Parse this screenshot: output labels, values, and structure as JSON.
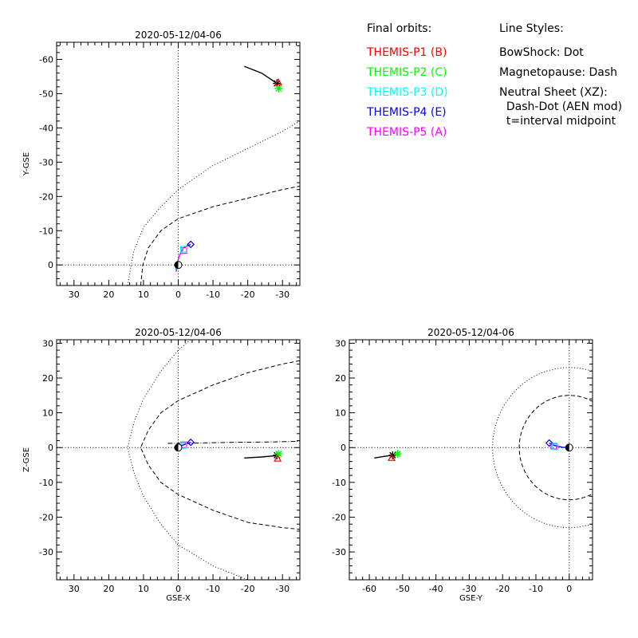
{
  "legend": {
    "orbits_title": "Final orbits:",
    "probes": [
      {
        "label": "THEMIS-P1 (B)",
        "color": "#ff0000"
      },
      {
        "label": "THEMIS-P2 (C)",
        "color": "#00ff00"
      },
      {
        "label": "THEMIS-P3 (D)",
        "color": "#00ffff"
      },
      {
        "label": "THEMIS-P4 (E)",
        "color": "#0000ff"
      },
      {
        "label": "THEMIS-P5 (A)",
        "color": "#ff00ff"
      }
    ],
    "styles_title": "Line Styles:",
    "styles": [
      "BowShock: Dot",
      "Magnetopause: Dash",
      "Neutral Sheet (XZ):",
      "  Dash-Dot (AEN mod)",
      "  t=interval midpoint"
    ]
  },
  "chart_data": [
    {
      "type": "line",
      "title": "2020-05-12/04-06",
      "xlabel": "",
      "ylabel": "Y-GSE",
      "xlim": [
        35,
        -35
      ],
      "ylim": [
        6,
        -65
      ],
      "xticks": [
        30,
        20,
        10,
        0,
        -10,
        -20,
        -30
      ],
      "yticks": [
        0,
        -10,
        -20,
        -30,
        -40,
        -50,
        -60
      ],
      "series": [
        {
          "style": "bowshock",
          "x": [
            14.6,
            12.8,
            10.0,
            5.0,
            0,
            -10,
            -20,
            -30,
            -35
          ],
          "y": [
            6,
            -4,
            -11,
            -17,
            -22,
            -29,
            -34,
            -39,
            -42
          ]
        },
        {
          "style": "magnetopause",
          "x": [
            10.8,
            10.2,
            8.6,
            5.0,
            0,
            -10,
            -20,
            -30,
            -35
          ],
          "y": [
            6,
            0,
            -5,
            -10,
            -13.5,
            -17,
            -19.5,
            -22,
            -23
          ]
        },
        {
          "style": "xaxis",
          "x": [
            35,
            -35
          ],
          "y": [
            0,
            0
          ]
        },
        {
          "style": "yaxis",
          "x": [
            0,
            0
          ],
          "y": [
            6,
            -65
          ]
        },
        {
          "color": "#000000",
          "x": [
            -19,
            -24,
            -28.4
          ],
          "y": [
            -58,
            -56,
            -53
          ]
        },
        {
          "color": "#00ffff",
          "x": [
            0.8,
            0.2,
            -0.5,
            -1.2,
            -1.6
          ],
          "y": [
            1.5,
            -1,
            -3,
            -4.5,
            -5
          ]
        },
        {
          "color": "#ff00ff",
          "x": [
            0.6,
            0.2,
            -0.2,
            -1.0,
            -1.4
          ],
          "y": [
            2.0,
            -0.5,
            -2.5,
            -4.0,
            -4.6
          ]
        },
        {
          "color": "#0000ff",
          "x": [
            -1.6,
            -2.6,
            -3.6
          ],
          "y": [
            -5,
            -5.6,
            -6
          ]
        }
      ],
      "markers": [
        {
          "shape": "star",
          "color": "#000000",
          "x": -28.4,
          "y": -53
        },
        {
          "shape": "triangle",
          "color": "#ff0000",
          "x": -28.8,
          "y": -53.3
        },
        {
          "shape": "star",
          "color": "#00ff00",
          "x": -28.9,
          "y": -51.5
        },
        {
          "shape": "diamond",
          "color": "#0000ff",
          "x": -3.6,
          "y": -6
        },
        {
          "shape": "square",
          "color": "#ff00ff",
          "x": -1.6,
          "y": -4.2
        },
        {
          "shape": "square",
          "color": "#00ffff",
          "x": -1.5,
          "y": -4.6
        },
        {
          "shape": "earth",
          "color": "#000000",
          "x": 0,
          "y": 0
        }
      ]
    },
    {
      "type": "line",
      "title": "2020-05-12/04-06",
      "xlabel": "GSE-X",
      "ylabel": "Z-GSE",
      "xlim": [
        35,
        -35
      ],
      "ylim": [
        -38,
        31
      ],
      "xticks": [
        30,
        20,
        10,
        0,
        -10,
        -20,
        -30
      ],
      "yticks": [
        30,
        20,
        10,
        0,
        -10,
        -20,
        -30
      ],
      "series": [
        {
          "style": "bowshock",
          "x": [
            -3.5,
            0,
            5,
            10,
            12.5,
            14.6,
            12.5,
            10,
            5,
            0,
            -10,
            -20
          ],
          "y": [
            31,
            28,
            22,
            14,
            8,
            0,
            -8,
            -14,
            -22,
            -28,
            -34,
            -38
          ]
        },
        {
          "style": "magnetopause",
          "x": [
            -35,
            -30,
            -20,
            -10,
            0,
            5,
            8.6,
            10.8,
            8.6,
            5,
            0,
            -10,
            -20,
            -30,
            -35
          ],
          "y": [
            25,
            24,
            21.5,
            18,
            13.5,
            10,
            5,
            0,
            -5,
            -10,
            -13.5,
            -18,
            -21.5,
            -23,
            -23.5
          ]
        },
        {
          "style": "neutral-sheet",
          "x": [
            3,
            -5,
            -15,
            -25,
            -35
          ],
          "y": [
            1.2,
            1.3,
            1.5,
            1.6,
            1.8
          ]
        },
        {
          "style": "xaxis",
          "x": [
            35,
            -35
          ],
          "y": [
            0,
            0
          ]
        },
        {
          "style": "yaxis",
          "x": [
            0,
            0
          ],
          "y": [
            -38,
            31
          ]
        },
        {
          "color": "#000000",
          "x": [
            -19,
            -24,
            -28.4
          ],
          "y": [
            -3,
            -2.7,
            -2.3
          ]
        },
        {
          "color": "#0000ff",
          "x": [
            -0.5,
            -1.6,
            -3.6
          ],
          "y": [
            0.4,
            0.8,
            1.5
          ]
        }
      ],
      "markers": [
        {
          "shape": "star",
          "color": "#000000",
          "x": -28.4,
          "y": -2.2
        },
        {
          "shape": "star",
          "color": "#00ff00",
          "x": -28.9,
          "y": -1.8
        },
        {
          "shape": "triangle",
          "color": "#ff0000",
          "x": -28.6,
          "y": -3.2
        },
        {
          "shape": "diamond",
          "color": "#0000ff",
          "x": -3.6,
          "y": 1.5
        },
        {
          "shape": "square",
          "color": "#ff00ff",
          "x": -1.6,
          "y": 0.8
        },
        {
          "shape": "square",
          "color": "#00ffff",
          "x": -1.5,
          "y": 0.6
        },
        {
          "shape": "earth",
          "color": "#000000",
          "x": 0,
          "y": 0
        }
      ]
    },
    {
      "type": "line",
      "title": "2020-05-12/04-06",
      "xlabel": "GSE-Y",
      "ylabel": "",
      "xlim": [
        -66,
        7
      ],
      "ylim": [
        -38,
        31
      ],
      "xticks": [
        -60,
        -50,
        -40,
        -30,
        -20,
        -10,
        0
      ],
      "yticks": [
        30,
        20,
        10,
        0,
        -10,
        -20,
        -30
      ],
      "series": [
        {
          "style": "bowshock-circle",
          "r": 23
        },
        {
          "style": "magnetopause-circle",
          "r": 15
        },
        {
          "style": "xaxis",
          "x": [
            -66,
            7
          ],
          "y": [
            0,
            0
          ]
        },
        {
          "style": "yaxis",
          "x": [
            0,
            0
          ],
          "y": [
            -38,
            31
          ]
        },
        {
          "color": "#000000",
          "x": [
            -58.5,
            -56,
            -53
          ],
          "y": [
            -3,
            -2.6,
            -2.2
          ]
        },
        {
          "color": "#0000ff",
          "x": [
            -6,
            -4.5,
            -2,
            0
          ],
          "y": [
            1.3,
            0.6,
            0.1,
            0
          ]
        }
      ],
      "markers": [
        {
          "shape": "star",
          "color": "#000000",
          "x": -53,
          "y": -2.2
        },
        {
          "shape": "triangle",
          "color": "#ff0000",
          "x": -53.3,
          "y": -3.0
        },
        {
          "shape": "star",
          "color": "#00ff00",
          "x": -51.5,
          "y": -1.8
        },
        {
          "shape": "diamond",
          "color": "#0000ff",
          "x": -6,
          "y": 1.3
        },
        {
          "shape": "square",
          "color": "#ff00ff",
          "x": -4.6,
          "y": 0.4
        },
        {
          "shape": "square",
          "color": "#00ffff",
          "x": -4.2,
          "y": 0.2
        },
        {
          "shape": "earth",
          "color": "#000000",
          "x": 0,
          "y": 0
        }
      ]
    }
  ]
}
